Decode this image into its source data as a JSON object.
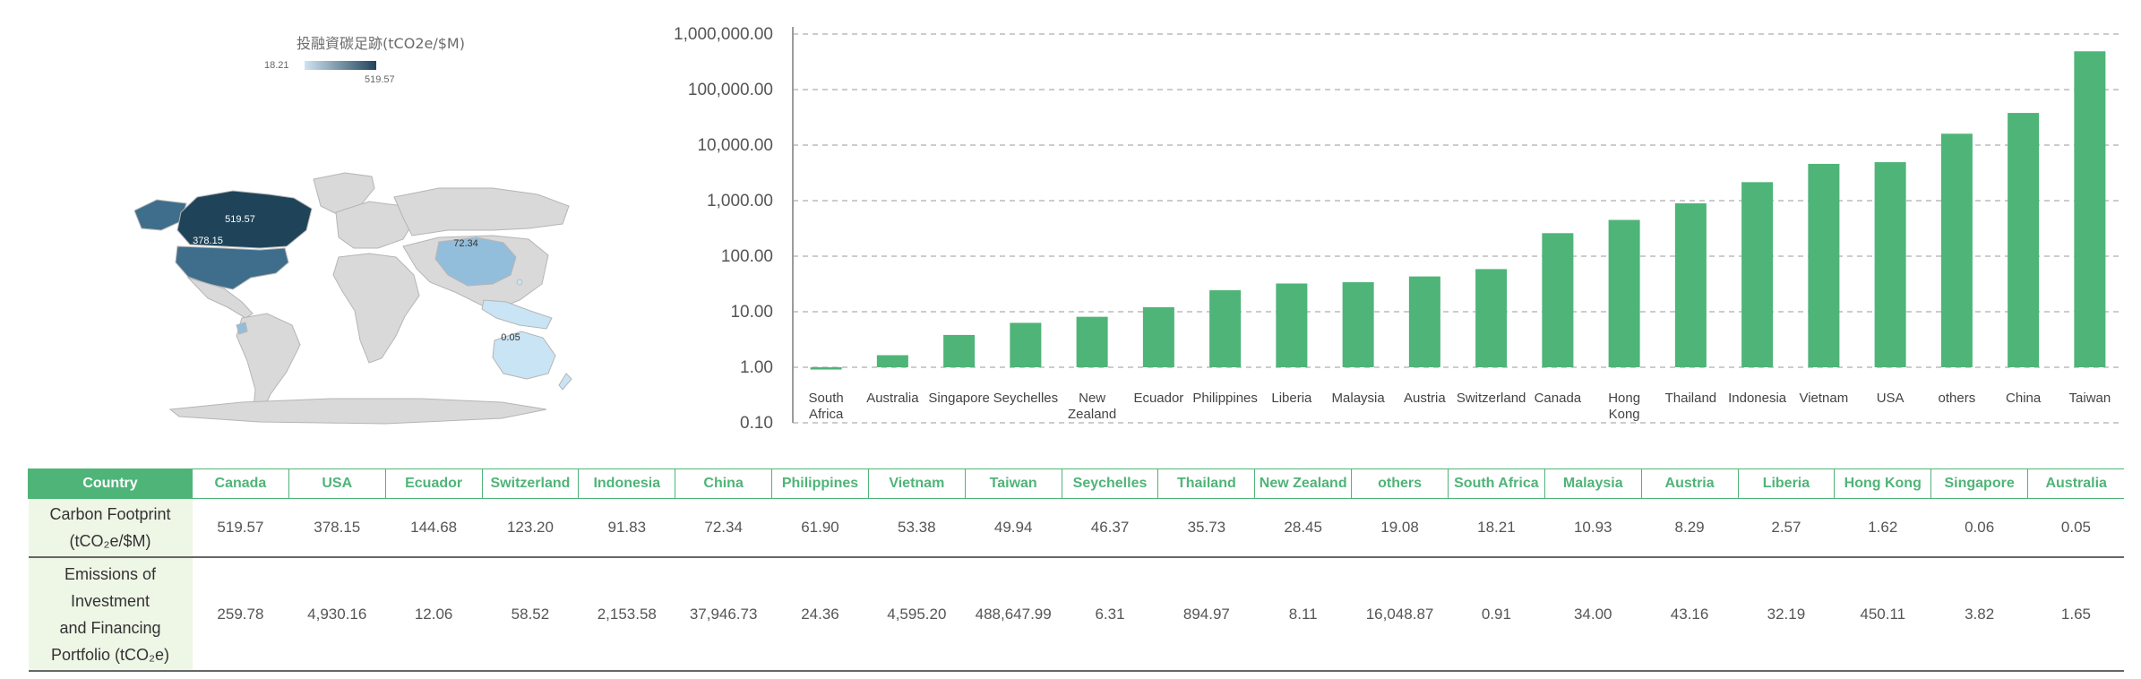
{
  "map": {
    "title": "投融資碳足跡(tCO2e/$M)",
    "legend_min": "18.21",
    "legend_max": "519.57",
    "region_labels": {
      "canada": "519.57",
      "usa": "378.15",
      "china": "72.34",
      "australia": "0.05"
    },
    "colors": {
      "dark": "#1f4459",
      "mid": "#3f6e8c",
      "light": "#93bedb",
      "pale": "#c9e4f4",
      "land": "#d9d9d9"
    }
  },
  "chart_data": {
    "type": "bar",
    "log_scale": true,
    "grid": true,
    "bar_color": "#4fb478",
    "categories": [
      "South Africa",
      "Australia",
      "Singapore",
      "Seychelles",
      "New Zealand",
      "Ecuador",
      "Philippines",
      "Liberia",
      "Malaysia",
      "Austria",
      "Switzerland",
      "Canada",
      "Hong Kong",
      "Thailand",
      "Indonesia",
      "Vietnam",
      "USA",
      "others",
      "China",
      "Taiwan"
    ],
    "category_lines": [
      [
        "South",
        "Africa"
      ],
      [
        "Australia"
      ],
      [
        "Singapore"
      ],
      [
        "Seychelles"
      ],
      [
        "New",
        "Zealand"
      ],
      [
        "Ecuador"
      ],
      [
        "Philippines"
      ],
      [
        "Liberia"
      ],
      [
        "Malaysia"
      ],
      [
        "Austria"
      ],
      [
        "Switzerland"
      ],
      [
        "Canada"
      ],
      [
        "Hong",
        "Kong"
      ],
      [
        "Thailand"
      ],
      [
        "Indonesia"
      ],
      [
        "Vietnam"
      ],
      [
        "USA"
      ],
      [
        "others"
      ],
      [
        "China"
      ],
      [
        "Taiwan"
      ]
    ],
    "values": [
      0.91,
      1.65,
      3.82,
      6.31,
      8.11,
      12.06,
      24.36,
      32.19,
      34.0,
      43.16,
      58.52,
      259.78,
      450.11,
      894.97,
      2153.58,
      4595.2,
      4930.16,
      16048.87,
      37946.73,
      488647.99
    ],
    "y_ticks": [
      "0.10",
      "1.00",
      "10.00",
      "100.00",
      "1,000.00",
      "10,000.00",
      "100,000.00",
      "1,000,000.00"
    ],
    "ylim": [
      0.1,
      1000000
    ]
  },
  "table": {
    "header_first": "Country",
    "countries": [
      "Canada",
      "USA",
      "Ecuador",
      "Switzerland",
      "Indonesia",
      "China",
      "Philippines",
      "Vietnam",
      "Taiwan",
      "Seychelles",
      "Thailand",
      "New Zealand",
      "others",
      "South Africa",
      "Malaysia",
      "Austria",
      "Liberia",
      "Hong Kong",
      "Singapore",
      "Australia"
    ],
    "row1_label_lines": [
      "Carbon Footprint",
      "(tCO₂e/$M)"
    ],
    "row1_values": [
      "519.57",
      "378.15",
      "144.68",
      "123.20",
      "91.83",
      "72.34",
      "61.90",
      "53.38",
      "49.94",
      "46.37",
      "35.73",
      "28.45",
      "19.08",
      "18.21",
      "10.93",
      "8.29",
      "2.57",
      "1.62",
      "0.06",
      "0.05"
    ],
    "row2_label_lines": [
      "Emissions of",
      "Investment",
      "and Financing",
      "Portfolio (tCO₂e)"
    ],
    "row2_values": [
      "259.78",
      "4,930.16",
      "12.06",
      "58.52",
      "2,153.58",
      "37,946.73",
      "24.36",
      "4,595.20",
      "488,647.99",
      "6.31",
      "894.97",
      "8.11",
      "16,048.87",
      "0.91",
      "34.00",
      "43.16",
      "32.19",
      "450.11",
      "3.82",
      "1.65"
    ]
  }
}
